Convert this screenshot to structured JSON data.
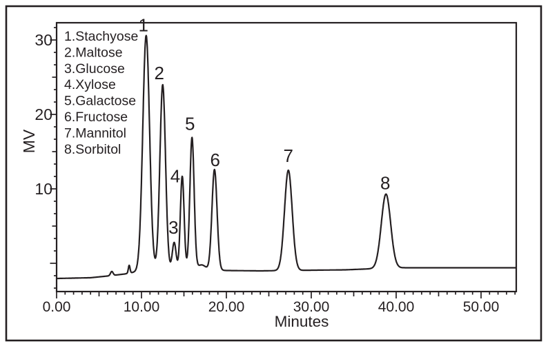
{
  "figure": {
    "background": "#ffffff",
    "line_color": "#241f21",
    "text_color": "#241f21"
  },
  "chart_data": {
    "type": "line",
    "title": "",
    "xlabel": "Minutes",
    "ylabel": "MV",
    "xlim": [
      0,
      54.1
    ],
    "ylim": [
      -3.8,
      32.3
    ],
    "grid": false,
    "legend_position": "upper-left-inside",
    "legend": [
      "1.Stachyose",
      "2.Maltose",
      "3.Glucose",
      "4.Xylose",
      "5.Galactose",
      "6.Fructose",
      "7.Mannitol",
      "8.Sorbitol"
    ],
    "x_major_ticks": [
      0,
      10,
      20,
      30,
      40,
      50
    ],
    "x_major_tick_labels": [
      "0.00",
      "10.00",
      "20.00",
      "30.00",
      "40.00",
      "50.00"
    ],
    "x_minor_tick_interval_min": 1,
    "y_major_ticks": [
      10,
      20,
      30
    ],
    "y_major_tick_labels": [
      "10",
      "20",
      "30"
    ],
    "y_minor_tick_interval_mv": 1.6667,
    "peaks": [
      {
        "number": "1",
        "compound": "Stachyose",
        "retention_min": 10.55,
        "apex_mv": 30.6,
        "sigma_min": 0.4,
        "label_offset": [
          -4,
          -6
        ]
      },
      {
        "number": "2",
        "compound": "Maltose",
        "retention_min": 12.5,
        "apex_mv": 24.0,
        "sigma_min": 0.33,
        "label_offset": [
          -5,
          -8
        ]
      },
      {
        "number": "3",
        "compound": "Glucose",
        "retention_min": 13.85,
        "apex_mv": 2.8,
        "sigma_min": 0.22,
        "label_offset": [
          -1,
          -13
        ]
      },
      {
        "number": "4",
        "compound": "Xylose",
        "retention_min": 14.8,
        "apex_mv": 11.7,
        "sigma_min": 0.22,
        "label_offset": [
          -10,
          9
        ]
      },
      {
        "number": "5",
        "compound": "Galactose",
        "retention_min": 15.95,
        "apex_mv": 16.9,
        "sigma_min": 0.25,
        "label_offset": [
          -3,
          -11
        ]
      },
      {
        "number": "6",
        "compound": "Fructose",
        "retention_min": 18.6,
        "apex_mv": 12.6,
        "sigma_min": 0.3,
        "label_offset": [
          1,
          -5
        ]
      },
      {
        "number": "7",
        "compound": "Mannitol",
        "retention_min": 27.3,
        "apex_mv": 12.5,
        "sigma_min": 0.45,
        "label_offset": [
          0,
          -12
        ]
      },
      {
        "number": "8",
        "compound": "Sorbitol",
        "retention_min": 38.8,
        "apex_mv": 9.3,
        "sigma_min": 0.55,
        "label_offset": [
          -1,
          -7
        ]
      }
    ],
    "baseline_points_min_mv": [
      [
        0,
        -2.04
      ],
      [
        4,
        -1.94
      ],
      [
        6,
        -1.71
      ],
      [
        8,
        -1.44
      ],
      [
        9.5,
        -1.11
      ],
      [
        11,
        -0.93
      ],
      [
        14,
        -0.83
      ],
      [
        16,
        -0.74
      ],
      [
        18,
        -0.88
      ],
      [
        20,
        -0.97
      ],
      [
        24,
        -1.02
      ],
      [
        27,
        -0.97
      ],
      [
        30,
        -0.93
      ],
      [
        34,
        -0.88
      ],
      [
        37,
        -0.74
      ],
      [
        39,
        -0.65
      ],
      [
        41,
        -0.6
      ],
      [
        54.12,
        -0.6
      ]
    ],
    "minor_features": [
      {
        "retention_min": 6.5,
        "height_mv": 0.55,
        "sigma_min": 0.15
      },
      {
        "retention_min": 8.55,
        "height_mv": 1.05,
        "sigma_min": 0.1
      },
      {
        "retention_min": 17.1,
        "height_mv": 0.6,
        "sigma_min": 0.45
      }
    ]
  }
}
